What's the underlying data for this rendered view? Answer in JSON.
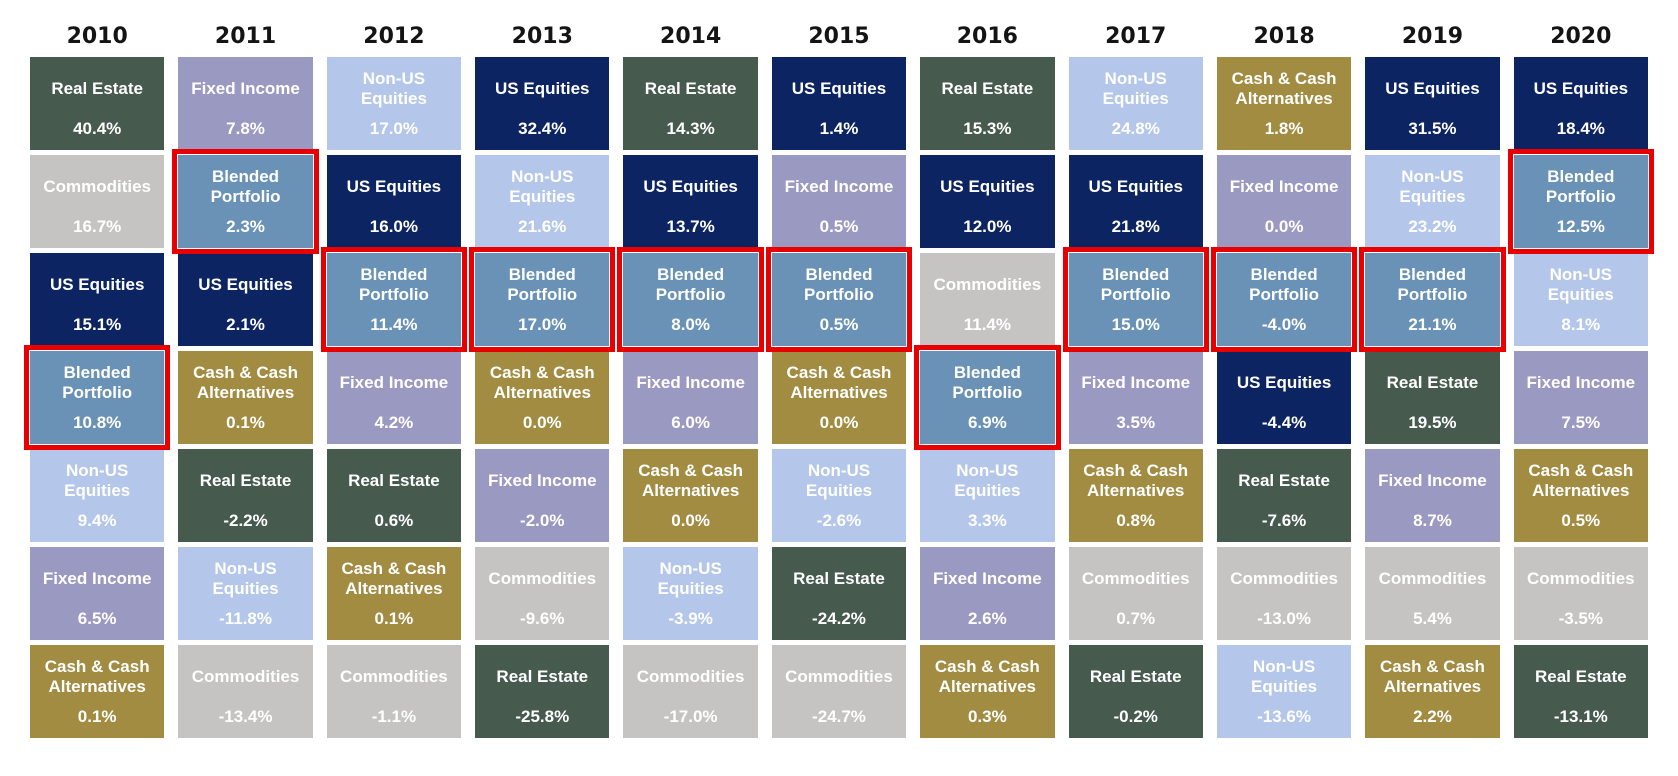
{
  "colors": {
    "real_estate": "#465a4e",
    "fixed_income": "#9a99c2",
    "non_us_equities": "#b4c7ea",
    "us_equities": "#0d2463",
    "cash": "#a28c42",
    "commodities": "#c5c4c3",
    "blended": "#6a92b6",
    "highlight_border": "#e80000",
    "cell_text": "#ffffff",
    "year_label_text": "#141414"
  },
  "columns": [
    {
      "year": "2010",
      "cells": [
        {
          "label": "Real Estate",
          "value": "40.4%",
          "asset": "real_estate",
          "highlighted": false
        },
        {
          "label": "Commodities",
          "value": "16.7%",
          "asset": "commodities",
          "highlighted": false
        },
        {
          "label": "US Equities",
          "value": "15.1%",
          "asset": "us_equities",
          "highlighted": false
        },
        {
          "label": "Blended Portfolio",
          "value": "10.8%",
          "asset": "blended",
          "highlighted": true
        },
        {
          "label": "Non-US Equities",
          "value": "9.4%",
          "asset": "non_us_equities",
          "highlighted": false
        },
        {
          "label": "Fixed Income",
          "value": "6.5%",
          "asset": "fixed_income",
          "highlighted": false
        },
        {
          "label": "Cash & Cash Alternatives",
          "value": "0.1%",
          "asset": "cash",
          "highlighted": false
        }
      ]
    },
    {
      "year": "2011",
      "cells": [
        {
          "label": "Fixed Income",
          "value": "7.8%",
          "asset": "fixed_income",
          "highlighted": false
        },
        {
          "label": "Blended Portfolio",
          "value": "2.3%",
          "asset": "blended",
          "highlighted": true
        },
        {
          "label": "US Equities",
          "value": "2.1%",
          "asset": "us_equities",
          "highlighted": false
        },
        {
          "label": "Cash & Cash Alternatives",
          "value": "0.1%",
          "asset": "cash",
          "highlighted": false
        },
        {
          "label": "Real Estate",
          "value": "-2.2%",
          "asset": "real_estate",
          "highlighted": false
        },
        {
          "label": "Non-US Equities",
          "value": "-11.8%",
          "asset": "non_us_equities",
          "highlighted": false
        },
        {
          "label": "Commodities",
          "value": "-13.4%",
          "asset": "commodities",
          "highlighted": false
        }
      ]
    },
    {
      "year": "2012",
      "cells": [
        {
          "label": "Non-US Equities",
          "value": "17.0%",
          "asset": "non_us_equities",
          "highlighted": false
        },
        {
          "label": "US Equities",
          "value": "16.0%",
          "asset": "us_equities",
          "highlighted": false
        },
        {
          "label": "Blended Portfolio",
          "value": "11.4%",
          "asset": "blended",
          "highlighted": true
        },
        {
          "label": "Fixed Income",
          "value": "4.2%",
          "asset": "fixed_income",
          "highlighted": false
        },
        {
          "label": "Real Estate",
          "value": "0.6%",
          "asset": "real_estate",
          "highlighted": false
        },
        {
          "label": "Cash & Cash Alternatives",
          "value": "0.1%",
          "asset": "cash",
          "highlighted": false
        },
        {
          "label": "Commodities",
          "value": "-1.1%",
          "asset": "commodities",
          "highlighted": false
        }
      ]
    },
    {
      "year": "2013",
      "cells": [
        {
          "label": "US Equities",
          "value": "32.4%",
          "asset": "us_equities",
          "highlighted": false
        },
        {
          "label": "Non-US Equities",
          "value": "21.6%",
          "asset": "non_us_equities",
          "highlighted": false
        },
        {
          "label": "Blended Portfolio",
          "value": "17.0%",
          "asset": "blended",
          "highlighted": true
        },
        {
          "label": "Cash & Cash Alternatives",
          "value": "0.0%",
          "asset": "cash",
          "highlighted": false
        },
        {
          "label": "Fixed Income",
          "value": "-2.0%",
          "asset": "fixed_income",
          "highlighted": false
        },
        {
          "label": "Commodities",
          "value": "-9.6%",
          "asset": "commodities",
          "highlighted": false
        },
        {
          "label": "Real Estate",
          "value": "-25.8%",
          "asset": "real_estate",
          "highlighted": false
        }
      ]
    },
    {
      "year": "2014",
      "cells": [
        {
          "label": "Real Estate",
          "value": "14.3%",
          "asset": "real_estate",
          "highlighted": false
        },
        {
          "label": "US Equities",
          "value": "13.7%",
          "asset": "us_equities",
          "highlighted": false
        },
        {
          "label": "Blended Portfolio",
          "value": "8.0%",
          "asset": "blended",
          "highlighted": true
        },
        {
          "label": "Fixed Income",
          "value": "6.0%",
          "asset": "fixed_income",
          "highlighted": false
        },
        {
          "label": "Cash & Cash Alternatives",
          "value": "0.0%",
          "asset": "cash",
          "highlighted": false
        },
        {
          "label": "Non-US Equities",
          "value": "-3.9%",
          "asset": "non_us_equities",
          "highlighted": false
        },
        {
          "label": "Commodities",
          "value": "-17.0%",
          "asset": "commodities",
          "highlighted": false
        }
      ]
    },
    {
      "year": "2015",
      "cells": [
        {
          "label": "US Equities",
          "value": "1.4%",
          "asset": "us_equities",
          "highlighted": false
        },
        {
          "label": "Fixed Income",
          "value": "0.5%",
          "asset": "fixed_income",
          "highlighted": false
        },
        {
          "label": "Blended Portfolio",
          "value": "0.5%",
          "asset": "blended",
          "highlighted": true
        },
        {
          "label": "Cash & Cash Alternatives",
          "value": "0.0%",
          "asset": "cash",
          "highlighted": false
        },
        {
          "label": "Non-US Equities",
          "value": "-2.6%",
          "asset": "non_us_equities",
          "highlighted": false
        },
        {
          "label": "Real Estate",
          "value": "-24.2%",
          "asset": "real_estate",
          "highlighted": false
        },
        {
          "label": "Commodities",
          "value": "-24.7%",
          "asset": "commodities",
          "highlighted": false
        }
      ]
    },
    {
      "year": "2016",
      "cells": [
        {
          "label": "Real Estate",
          "value": "15.3%",
          "asset": "real_estate",
          "highlighted": false
        },
        {
          "label": "US Equities",
          "value": "12.0%",
          "asset": "us_equities",
          "highlighted": false
        },
        {
          "label": "Commodities",
          "value": "11.4%",
          "asset": "commodities",
          "highlighted": false
        },
        {
          "label": "Blended Portfolio",
          "value": "6.9%",
          "asset": "blended",
          "highlighted": true
        },
        {
          "label": "Non-US Equities",
          "value": "3.3%",
          "asset": "non_us_equities",
          "highlighted": false
        },
        {
          "label": "Fixed Income",
          "value": "2.6%",
          "asset": "fixed_income",
          "highlighted": false
        },
        {
          "label": "Cash & Cash Alternatives",
          "value": "0.3%",
          "asset": "cash",
          "highlighted": false
        }
      ]
    },
    {
      "year": "2017",
      "cells": [
        {
          "label": "Non-US Equities",
          "value": "24.8%",
          "asset": "non_us_equities",
          "highlighted": false
        },
        {
          "label": "US Equities",
          "value": "21.8%",
          "asset": "us_equities",
          "highlighted": false
        },
        {
          "label": "Blended Portfolio",
          "value": "15.0%",
          "asset": "blended",
          "highlighted": true
        },
        {
          "label": "Fixed Income",
          "value": "3.5%",
          "asset": "fixed_income",
          "highlighted": false
        },
        {
          "label": "Cash & Cash Alternatives",
          "value": "0.8%",
          "asset": "cash",
          "highlighted": false
        },
        {
          "label": "Commodities",
          "value": "0.7%",
          "asset": "commodities",
          "highlighted": false
        },
        {
          "label": "Real Estate",
          "value": "-0.2%",
          "asset": "real_estate",
          "highlighted": false
        }
      ]
    },
    {
      "year": "2018",
      "cells": [
        {
          "label": "Cash & Cash Alternatives",
          "value": "1.8%",
          "asset": "cash",
          "highlighted": false
        },
        {
          "label": "Fixed Income",
          "value": "0.0%",
          "asset": "fixed_income",
          "highlighted": false
        },
        {
          "label": "Blended Portfolio",
          "value": "-4.0%",
          "asset": "blended",
          "highlighted": true
        },
        {
          "label": "US Equities",
          "value": "-4.4%",
          "asset": "us_equities",
          "highlighted": false
        },
        {
          "label": "Real Estate",
          "value": "-7.6%",
          "asset": "real_estate",
          "highlighted": false
        },
        {
          "label": "Commodities",
          "value": "-13.0%",
          "asset": "commodities",
          "highlighted": false
        },
        {
          "label": "Non-US Equities",
          "value": "-13.6%",
          "asset": "non_us_equities",
          "highlighted": false
        }
      ]
    },
    {
      "year": "2019",
      "cells": [
        {
          "label": "US Equities",
          "value": "31.5%",
          "asset": "us_equities",
          "highlighted": false
        },
        {
          "label": "Non-US Equities",
          "value": "23.2%",
          "asset": "non_us_equities",
          "highlighted": false
        },
        {
          "label": "Blended Portfolio",
          "value": "21.1%",
          "asset": "blended",
          "highlighted": true
        },
        {
          "label": "Real Estate",
          "value": "19.5%",
          "asset": "real_estate",
          "highlighted": false
        },
        {
          "label": "Fixed Income",
          "value": "8.7%",
          "asset": "fixed_income",
          "highlighted": false
        },
        {
          "label": "Commodities",
          "value": "5.4%",
          "asset": "commodities",
          "highlighted": false
        },
        {
          "label": "Cash & Cash Alternatives",
          "value": "2.2%",
          "asset": "cash",
          "highlighted": false
        }
      ]
    },
    {
      "year": "2020",
      "cells": [
        {
          "label": "US Equities",
          "value": "18.4%",
          "asset": "us_equities",
          "highlighted": false
        },
        {
          "label": "Blended Portfolio",
          "value": "12.5%",
          "asset": "blended",
          "highlighted": true
        },
        {
          "label": "Non-US Equities",
          "value": "8.1%",
          "asset": "non_us_equities",
          "highlighted": false
        },
        {
          "label": "Fixed Income",
          "value": "7.5%",
          "asset": "fixed_income",
          "highlighted": false
        },
        {
          "label": "Cash & Cash Alternatives",
          "value": "0.5%",
          "asset": "cash",
          "highlighted": false
        },
        {
          "label": "Commodities",
          "value": "-3.5%",
          "asset": "commodities",
          "highlighted": false
        },
        {
          "label": "Real Estate",
          "value": "-13.1%",
          "asset": "real_estate",
          "highlighted": false
        }
      ]
    }
  ],
  "chart_data": {
    "type": "table",
    "subtype": "asset-class-returns-quilt",
    "description": "Annual returns by asset class, ranked best to worst within each year; Blended Portfolio cells outlined in red",
    "categories": [
      "2010",
      "2011",
      "2012",
      "2013",
      "2014",
      "2015",
      "2016",
      "2017",
      "2018",
      "2019",
      "2020"
    ],
    "series": [
      {
        "name": "Real Estate",
        "values": [
          40.4,
          -2.2,
          0.6,
          -25.8,
          14.3,
          -24.2,
          15.3,
          -0.2,
          -7.6,
          19.5,
          -13.1
        ]
      },
      {
        "name": "US Equities",
        "values": [
          15.1,
          2.1,
          16.0,
          32.4,
          13.7,
          1.4,
          12.0,
          21.8,
          -4.4,
          31.5,
          18.4
        ]
      },
      {
        "name": "Non-US Equities",
        "values": [
          9.4,
          -11.8,
          17.0,
          21.6,
          -3.9,
          -2.6,
          3.3,
          24.8,
          -13.6,
          23.2,
          8.1
        ]
      },
      {
        "name": "Fixed Income",
        "values": [
          6.5,
          7.8,
          4.2,
          -2.0,
          6.0,
          0.5,
          2.6,
          3.5,
          0.0,
          8.7,
          7.5
        ]
      },
      {
        "name": "Cash & Cash Alternatives",
        "values": [
          0.1,
          0.1,
          0.1,
          0.0,
          0.0,
          0.0,
          0.3,
          0.8,
          1.8,
          2.2,
          0.5
        ]
      },
      {
        "name": "Commodities",
        "values": [
          16.7,
          -13.4,
          -1.1,
          -9.6,
          -17.0,
          -24.7,
          11.4,
          0.7,
          -13.0,
          5.4,
          -3.5
        ]
      },
      {
        "name": "Blended Portfolio",
        "values": [
          10.8,
          2.3,
          11.4,
          17.0,
          8.0,
          0.5,
          6.9,
          15.0,
          -4.0,
          21.1,
          12.5
        ]
      }
    ],
    "legend_position": "none",
    "grid": false,
    "units": "%"
  }
}
